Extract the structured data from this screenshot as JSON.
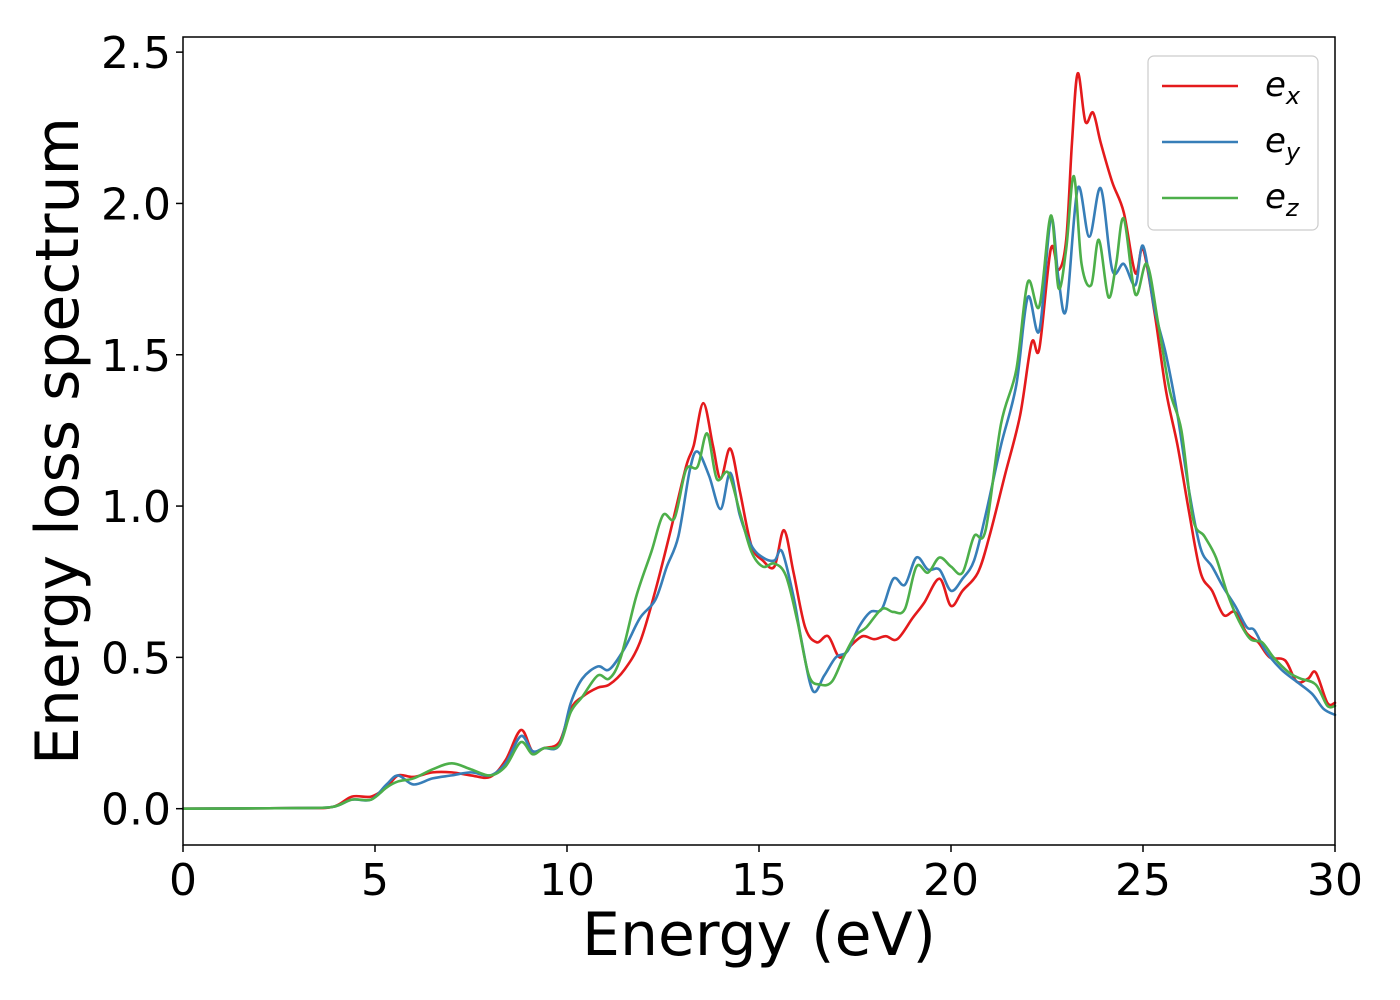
{
  "chart_data": {
    "type": "line",
    "title": "",
    "xlabel": "Energy (eV)",
    "ylabel": "Energy loss spectrum",
    "xlim": [
      0,
      30
    ],
    "ylim": [
      -0.12,
      2.55
    ],
    "xticks": [
      0,
      5,
      10,
      15,
      20,
      25,
      30
    ],
    "yticks": [
      0.0,
      0.5,
      1.0,
      1.5,
      2.0,
      2.5
    ],
    "xtick_labels": [
      "0",
      "5",
      "10",
      "15",
      "20",
      "25",
      "30"
    ],
    "ytick_labels": [
      "0.0",
      "0.5",
      "1.0",
      "1.5",
      "2.0",
      "2.5"
    ],
    "grid": false,
    "legend_position": "top-right",
    "series": [
      {
        "name": "e",
        "subscript": "x",
        "color": "#e41a1c",
        "points": [
          [
            0,
            0
          ],
          [
            3,
            0.002
          ],
          [
            3.9,
            0.006
          ],
          [
            4.4,
            0.04
          ],
          [
            4.9,
            0.04
          ],
          [
            5.3,
            0.07
          ],
          [
            5.6,
            0.11
          ],
          [
            6.0,
            0.105
          ],
          [
            6.5,
            0.12
          ],
          [
            7.0,
            0.12
          ],
          [
            7.5,
            0.11
          ],
          [
            8.0,
            0.105
          ],
          [
            8.4,
            0.16
          ],
          [
            8.8,
            0.26
          ],
          [
            9.1,
            0.19
          ],
          [
            9.4,
            0.2
          ],
          [
            9.8,
            0.22
          ],
          [
            10.1,
            0.33
          ],
          [
            10.4,
            0.37
          ],
          [
            10.8,
            0.4
          ],
          [
            11.1,
            0.41
          ],
          [
            11.5,
            0.46
          ],
          [
            11.9,
            0.55
          ],
          [
            12.3,
            0.72
          ],
          [
            12.7,
            0.92
          ],
          [
            13.1,
            1.13
          ],
          [
            13.3,
            1.2
          ],
          [
            13.55,
            1.34
          ],
          [
            13.8,
            1.2
          ],
          [
            14.0,
            1.09
          ],
          [
            14.25,
            1.19
          ],
          [
            14.5,
            1.05
          ],
          [
            14.8,
            0.87
          ],
          [
            15.1,
            0.82
          ],
          [
            15.4,
            0.8
          ],
          [
            15.65,
            0.92
          ],
          [
            15.9,
            0.78
          ],
          [
            16.2,
            0.6
          ],
          [
            16.5,
            0.55
          ],
          [
            16.8,
            0.57
          ],
          [
            17.1,
            0.5
          ],
          [
            17.4,
            0.54
          ],
          [
            17.7,
            0.57
          ],
          [
            18.0,
            0.56
          ],
          [
            18.3,
            0.57
          ],
          [
            18.6,
            0.56
          ],
          [
            19.0,
            0.63
          ],
          [
            19.3,
            0.68
          ],
          [
            19.7,
            0.76
          ],
          [
            20.0,
            0.67
          ],
          [
            20.3,
            0.72
          ],
          [
            20.7,
            0.78
          ],
          [
            21.0,
            0.9
          ],
          [
            21.4,
            1.1
          ],
          [
            21.8,
            1.3
          ],
          [
            22.1,
            1.54
          ],
          [
            22.3,
            1.52
          ],
          [
            22.6,
            1.85
          ],
          [
            22.8,
            1.78
          ],
          [
            23.0,
            1.88
          ],
          [
            23.15,
            2.2
          ],
          [
            23.3,
            2.43
          ],
          [
            23.5,
            2.27
          ],
          [
            23.7,
            2.3
          ],
          [
            23.9,
            2.2
          ],
          [
            24.2,
            2.07
          ],
          [
            24.5,
            1.97
          ],
          [
            24.8,
            1.77
          ],
          [
            25.0,
            1.85
          ],
          [
            25.3,
            1.64
          ],
          [
            25.6,
            1.38
          ],
          [
            25.9,
            1.2
          ],
          [
            26.2,
            0.98
          ],
          [
            26.5,
            0.78
          ],
          [
            26.8,
            0.72
          ],
          [
            27.1,
            0.64
          ],
          [
            27.4,
            0.65
          ],
          [
            27.7,
            0.58
          ],
          [
            28.0,
            0.55
          ],
          [
            28.3,
            0.5
          ],
          [
            28.7,
            0.49
          ],
          [
            29.0,
            0.42
          ],
          [
            29.3,
            0.43
          ],
          [
            29.5,
            0.45
          ],
          [
            29.8,
            0.35
          ],
          [
            30,
            0.35
          ]
        ]
      },
      {
        "name": "e",
        "subscript": "y",
        "color": "#377eb8",
        "points": [
          [
            0,
            0
          ],
          [
            3,
            0.002
          ],
          [
            3.9,
            0.006
          ],
          [
            4.4,
            0.03
          ],
          [
            4.9,
            0.03
          ],
          [
            5.3,
            0.08
          ],
          [
            5.6,
            0.11
          ],
          [
            6.0,
            0.08
          ],
          [
            6.5,
            0.1
          ],
          [
            7.0,
            0.11
          ],
          [
            7.5,
            0.12
          ],
          [
            8.0,
            0.11
          ],
          [
            8.4,
            0.15
          ],
          [
            8.8,
            0.24
          ],
          [
            9.1,
            0.19
          ],
          [
            9.4,
            0.2
          ],
          [
            9.8,
            0.21
          ],
          [
            10.1,
            0.35
          ],
          [
            10.4,
            0.43
          ],
          [
            10.8,
            0.47
          ],
          [
            11.1,
            0.46
          ],
          [
            11.5,
            0.53
          ],
          [
            11.9,
            0.63
          ],
          [
            12.3,
            0.69
          ],
          [
            12.6,
            0.8
          ],
          [
            12.9,
            0.9
          ],
          [
            13.2,
            1.12
          ],
          [
            13.4,
            1.18
          ],
          [
            13.7,
            1.1
          ],
          [
            14.0,
            0.99
          ],
          [
            14.25,
            1.11
          ],
          [
            14.5,
            0.97
          ],
          [
            14.8,
            0.87
          ],
          [
            15.1,
            0.83
          ],
          [
            15.4,
            0.82
          ],
          [
            15.6,
            0.85
          ],
          [
            15.9,
            0.7
          ],
          [
            16.1,
            0.56
          ],
          [
            16.4,
            0.39
          ],
          [
            16.7,
            0.44
          ],
          [
            17.0,
            0.5
          ],
          [
            17.3,
            0.52
          ],
          [
            17.6,
            0.6
          ],
          [
            17.9,
            0.65
          ],
          [
            18.2,
            0.66
          ],
          [
            18.5,
            0.76
          ],
          [
            18.8,
            0.74
          ],
          [
            19.1,
            0.83
          ],
          [
            19.4,
            0.79
          ],
          [
            19.7,
            0.79
          ],
          [
            20.0,
            0.72
          ],
          [
            20.3,
            0.76
          ],
          [
            20.6,
            0.82
          ],
          [
            20.9,
            0.97
          ],
          [
            21.3,
            1.2
          ],
          [
            21.7,
            1.4
          ],
          [
            22.0,
            1.69
          ],
          [
            22.3,
            1.58
          ],
          [
            22.6,
            1.95
          ],
          [
            22.8,
            1.75
          ],
          [
            23.0,
            1.65
          ],
          [
            23.3,
            2.05
          ],
          [
            23.6,
            1.89
          ],
          [
            23.9,
            2.05
          ],
          [
            24.2,
            1.78
          ],
          [
            24.5,
            1.8
          ],
          [
            24.8,
            1.73
          ],
          [
            25.0,
            1.86
          ],
          [
            25.3,
            1.65
          ],
          [
            25.6,
            1.5
          ],
          [
            25.9,
            1.3
          ],
          [
            26.2,
            1.05
          ],
          [
            26.5,
            0.86
          ],
          [
            26.8,
            0.8
          ],
          [
            27.1,
            0.73
          ],
          [
            27.4,
            0.67
          ],
          [
            27.7,
            0.6
          ],
          [
            27.9,
            0.59
          ],
          [
            28.2,
            0.52
          ],
          [
            28.6,
            0.46
          ],
          [
            29.0,
            0.42
          ],
          [
            29.4,
            0.38
          ],
          [
            29.7,
            0.33
          ],
          [
            30,
            0.31
          ]
        ]
      },
      {
        "name": "e",
        "subscript": "z",
        "color": "#4daf4a",
        "points": [
          [
            0,
            0
          ],
          [
            3,
            0.002
          ],
          [
            3.9,
            0.006
          ],
          [
            4.4,
            0.03
          ],
          [
            4.9,
            0.03
          ],
          [
            5.3,
            0.07
          ],
          [
            5.6,
            0.09
          ],
          [
            6.0,
            0.1
          ],
          [
            6.5,
            0.13
          ],
          [
            7.0,
            0.15
          ],
          [
            7.5,
            0.13
          ],
          [
            8.0,
            0.11
          ],
          [
            8.4,
            0.14
          ],
          [
            8.8,
            0.22
          ],
          [
            9.1,
            0.18
          ],
          [
            9.4,
            0.2
          ],
          [
            9.8,
            0.21
          ],
          [
            10.1,
            0.32
          ],
          [
            10.4,
            0.37
          ],
          [
            10.8,
            0.44
          ],
          [
            11.1,
            0.43
          ],
          [
            11.4,
            0.5
          ],
          [
            11.8,
            0.7
          ],
          [
            12.2,
            0.85
          ],
          [
            12.5,
            0.97
          ],
          [
            12.8,
            0.96
          ],
          [
            13.1,
            1.12
          ],
          [
            13.4,
            1.13
          ],
          [
            13.65,
            1.24
          ],
          [
            13.9,
            1.09
          ],
          [
            14.2,
            1.11
          ],
          [
            14.5,
            0.98
          ],
          [
            14.8,
            0.85
          ],
          [
            15.1,
            0.8
          ],
          [
            15.4,
            0.81
          ],
          [
            15.7,
            0.77
          ],
          [
            16.0,
            0.62
          ],
          [
            16.3,
            0.44
          ],
          [
            16.6,
            0.41
          ],
          [
            16.9,
            0.42
          ],
          [
            17.2,
            0.5
          ],
          [
            17.5,
            0.57
          ],
          [
            17.8,
            0.6
          ],
          [
            18.2,
            0.66
          ],
          [
            18.5,
            0.65
          ],
          [
            18.8,
            0.66
          ],
          [
            19.1,
            0.8
          ],
          [
            19.4,
            0.78
          ],
          [
            19.7,
            0.83
          ],
          [
            20.0,
            0.8
          ],
          [
            20.3,
            0.78
          ],
          [
            20.6,
            0.9
          ],
          [
            20.9,
            0.92
          ],
          [
            21.3,
            1.27
          ],
          [
            21.7,
            1.45
          ],
          [
            22.0,
            1.74
          ],
          [
            22.3,
            1.66
          ],
          [
            22.6,
            1.96
          ],
          [
            22.8,
            1.72
          ],
          [
            23.0,
            1.85
          ],
          [
            23.2,
            2.09
          ],
          [
            23.4,
            1.8
          ],
          [
            23.65,
            1.73
          ],
          [
            23.85,
            1.88
          ],
          [
            24.1,
            1.69
          ],
          [
            24.3,
            1.8
          ],
          [
            24.5,
            1.95
          ],
          [
            24.8,
            1.7
          ],
          [
            25.1,
            1.8
          ],
          [
            25.4,
            1.6
          ],
          [
            25.7,
            1.38
          ],
          [
            26.0,
            1.25
          ],
          [
            26.3,
            0.96
          ],
          [
            26.6,
            0.9
          ],
          [
            26.9,
            0.83
          ],
          [
            27.2,
            0.71
          ],
          [
            27.5,
            0.62
          ],
          [
            27.8,
            0.56
          ],
          [
            28.1,
            0.55
          ],
          [
            28.4,
            0.5
          ],
          [
            28.8,
            0.45
          ],
          [
            29.1,
            0.43
          ],
          [
            29.5,
            0.41
          ],
          [
            29.8,
            0.34
          ],
          [
            30,
            0.34
          ]
        ]
      }
    ]
  }
}
